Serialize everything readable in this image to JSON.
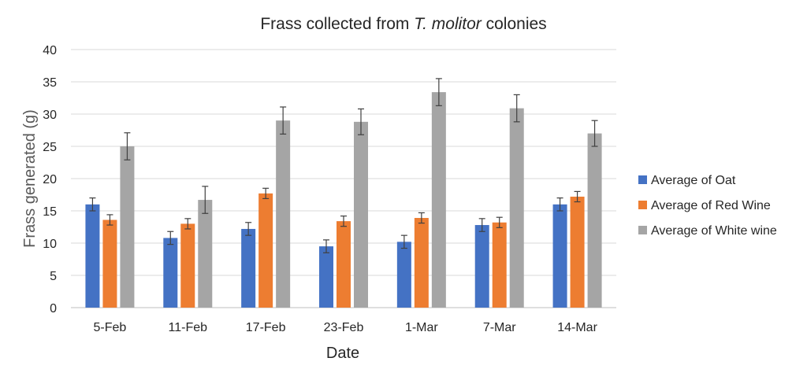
{
  "chart_data": {
    "type": "bar",
    "title_prefix": "Frass collected from ",
    "title_italic": "T. molitor",
    "title_suffix": " colonies",
    "xlabel": "Date",
    "ylabel": "Frass generated (g)",
    "ylim": [
      0,
      40
    ],
    "yticks": [
      0,
      5,
      10,
      15,
      20,
      25,
      30,
      35,
      40
    ],
    "grid": true,
    "legend_position": "right",
    "categories": [
      "5-Feb",
      "11-Feb",
      "17-Feb",
      "23-Feb",
      "1-Mar",
      "7-Mar",
      "14-Mar"
    ],
    "series": [
      {
        "name": "Average of Oat",
        "color": "#4472C4",
        "values": [
          16.0,
          10.8,
          12.2,
          9.5,
          10.2,
          12.8,
          16.0
        ],
        "errors": [
          1.0,
          1.0,
          1.0,
          1.0,
          1.0,
          1.0,
          1.0
        ]
      },
      {
        "name": "Average of Red Wine",
        "color": "#ED7D31",
        "values": [
          13.6,
          13.0,
          17.7,
          13.4,
          13.9,
          13.2,
          17.2
        ],
        "errors": [
          0.8,
          0.8,
          0.8,
          0.8,
          0.8,
          0.8,
          0.8
        ]
      },
      {
        "name": "Average of White wine",
        "color": "#A5A5A5",
        "values": [
          25.0,
          16.7,
          29.0,
          28.8,
          33.4,
          30.9,
          27.0
        ],
        "errors": [
          2.1,
          2.1,
          2.1,
          2.0,
          2.1,
          2.1,
          2.0
        ]
      }
    ]
  }
}
